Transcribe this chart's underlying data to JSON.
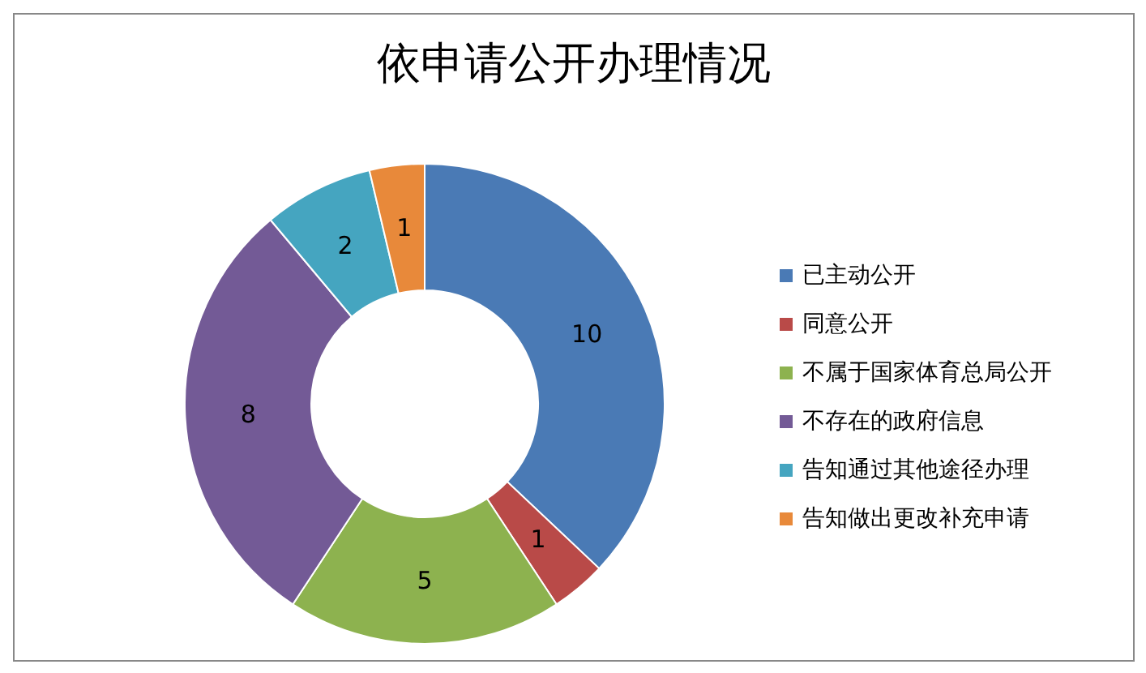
{
  "chart_data": {
    "type": "donut",
    "title": "依申请公开办理情况",
    "categories": [
      "已主动公开",
      "同意公开",
      "不属于国家体育总局公开",
      "不存在的政府信息",
      "告知通过其他途径办理",
      "告知做出更改补充申请"
    ],
    "values": [
      10,
      1,
      5,
      8,
      2,
      1
    ],
    "colors": [
      "#4a7ab5",
      "#b94a48",
      "#8db24f",
      "#735a96",
      "#45a5c0",
      "#e8893a"
    ],
    "data_labels": true,
    "legend": "right"
  }
}
